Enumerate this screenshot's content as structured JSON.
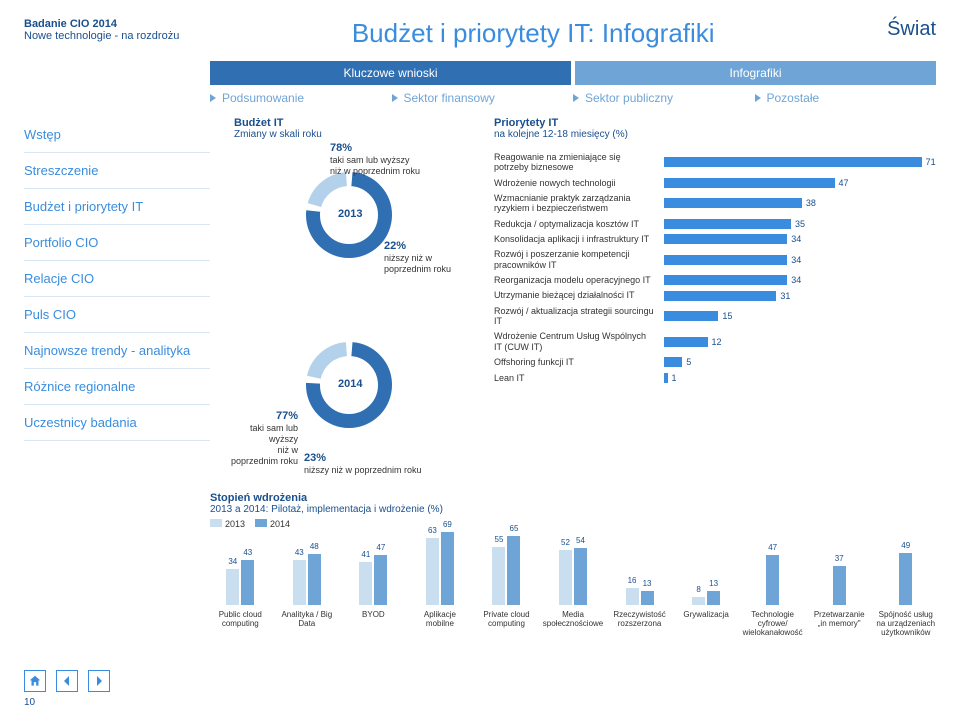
{
  "header": {
    "study": "Badanie CIO 2014",
    "subtitle": "Nowe technologie - na rozdrożu",
    "page_title": "Budżet i priorytety IT: Infografiki",
    "scope": "Świat"
  },
  "tabs": {
    "key": "Kluczowe wnioski",
    "info": "Infografiki"
  },
  "subtabs": [
    "Podsumowanie",
    "Sektor finansowy",
    "Sektor publiczny",
    "Pozostałe"
  ],
  "sidebar": [
    "Wstęp",
    "Streszczenie",
    "Budżet i priorytety IT",
    "Portfolio CIO",
    "Relacje CIO",
    "Puls CIO",
    "Najnowsze trendy - analityka",
    "Różnice regionalne",
    "Uczestnicy badania"
  ],
  "donuts": {
    "heading": "Budżet IT",
    "subheading": "Zmiany w skali roku",
    "items": [
      {
        "year": "2013",
        "higher_pct": 78,
        "higher_label": "taki sam lub wyższy\nniż w poprzednim roku",
        "lower_pct": 22,
        "lower_label": "niższy niż w poprzednim roku",
        "colors": {
          "higher": "#2f6fb2",
          "lower": "#b3d1ea"
        },
        "ring_stroke": 14
      },
      {
        "year": "2014",
        "higher_pct": 77,
        "higher_label": "taki sam lub wyższy\nniż w poprzednim roku",
        "lower_pct": 23,
        "lower_label": "niższy niż w poprzednim roku",
        "colors": {
          "higher": "#2f6fb2",
          "lower": "#b3d1ea"
        },
        "ring_stroke": 14
      }
    ]
  },
  "hbar": {
    "heading": "Priorytety IT",
    "subheading": "na kolejne 12-18 miesięcy (%)",
    "max": 75,
    "bar_color": "#3a8dde",
    "items": [
      {
        "label": "Reagowanie na zmieniające się potrzeby biznesowe",
        "value": 71
      },
      {
        "label": "Wdrożenie nowych technologii",
        "value": 47
      },
      {
        "label": "Wzmacnianie praktyk zarządzania ryzykiem i bezpieczeństwem",
        "value": 38
      },
      {
        "label": "Redukcja / optymalizacja kosztów IT",
        "value": 35
      },
      {
        "label": "Konsolidacja aplikacji i infrastruktury IT",
        "value": 34
      },
      {
        "label": "Rozwój i poszerzanie kompetencji pracowników IT",
        "value": 34
      },
      {
        "label": "Reorganizacja modelu operacyjnego IT",
        "value": 34
      },
      {
        "label": "Utrzymanie bieżącej działalności IT",
        "value": 31
      },
      {
        "label": "Rozwój / aktualizacja strategii sourcingu IT",
        "value": 15
      },
      {
        "label": "Wdrożenie Centrum Usług Wspólnych IT (CUW IT)",
        "value": 12
      },
      {
        "label": "Offshoring funkcji IT",
        "value": 5
      },
      {
        "label": "Lean IT",
        "value": 1
      }
    ]
  },
  "adoption": {
    "title": "Stopień wdrożenia",
    "subtitle": "2013 a 2014: Pilotaż, implementacja i wdrożenie (%)",
    "legend_2013": "2013",
    "legend_2014": "2014",
    "colors": {
      "2013": "#c9dff0",
      "2014": "#6fa5d6"
    },
    "max": 70,
    "groups": [
      {
        "label": "Public cloud computing",
        "v2013": 34,
        "v2014": 43
      },
      {
        "label": "Analityka / Big Data",
        "v2013": 43,
        "v2014": 48
      },
      {
        "label": "BYOD",
        "v2013": 41,
        "v2014": 47
      },
      {
        "label": "Aplikacje mobilne",
        "v2013": 63,
        "v2014": 69
      },
      {
        "label": "Private cloud computing",
        "v2013": 55,
        "v2014": 65
      },
      {
        "label": "Media społecznościowe",
        "v2013": 52,
        "v2014": 54
      },
      {
        "label": "Rzeczywistość rozszerzona",
        "v2013": 16,
        "v2014": 13
      },
      {
        "label": "Grywalizacja",
        "v2013": 8,
        "v2014": 13
      },
      {
        "label": "Technologie cyfrowe/ wielokanałowość",
        "v2013": null,
        "v2014": 47
      },
      {
        "label": "Przetwarzanie „in memory\"",
        "v2013": null,
        "v2014": 37
      },
      {
        "label": "Spójność usług na urządzeniach użytkowników",
        "v2013": null,
        "v2014": 49
      }
    ]
  },
  "page_number": "10"
}
